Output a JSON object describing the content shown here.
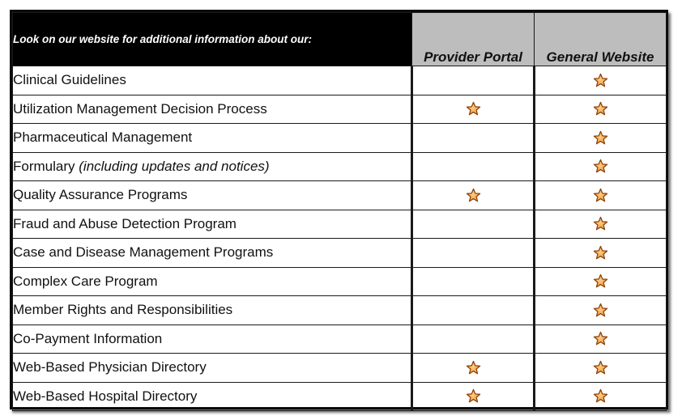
{
  "header": {
    "intro": "Look on our website for additional information about our:",
    "col_portal": "Provider Portal",
    "col_website": "General Website"
  },
  "colors": {
    "star_fill": "#f29a3a",
    "star_stroke": "#8a3f06",
    "header_bg": "#000000",
    "column_header_bg": "#bdbdbd"
  },
  "rows": [
    {
      "label": "Clinical Guidelines",
      "note": "",
      "portal": false,
      "website": true
    },
    {
      "label": "Utilization Management Decision Process",
      "note": "",
      "portal": true,
      "website": true
    },
    {
      "label": "Pharmaceutical Management",
      "note": "",
      "portal": false,
      "website": true
    },
    {
      "label": "Formulary",
      "note": "(including updates and notices)",
      "portal": false,
      "website": true
    },
    {
      "label": "Quality Assurance Programs",
      "note": "",
      "portal": true,
      "website": true
    },
    {
      "label": "Fraud and Abuse Detection Program",
      "note": "",
      "portal": false,
      "website": true
    },
    {
      "label": "Case and Disease Management Programs",
      "note": "",
      "portal": false,
      "website": true
    },
    {
      "label": "Complex Care Program",
      "note": "",
      "portal": false,
      "website": true
    },
    {
      "label": "Member Rights and Responsibilities",
      "note": "",
      "portal": false,
      "website": true
    },
    {
      "label": "Co-Payment Information",
      "note": "",
      "portal": false,
      "website": true
    },
    {
      "label": "Web-Based Physician Directory",
      "note": "",
      "portal": true,
      "website": true
    },
    {
      "label": "Web-Based Hospital Directory",
      "note": "",
      "portal": true,
      "website": true
    }
  ],
  "icons": {
    "check_mark": "star-icon"
  }
}
